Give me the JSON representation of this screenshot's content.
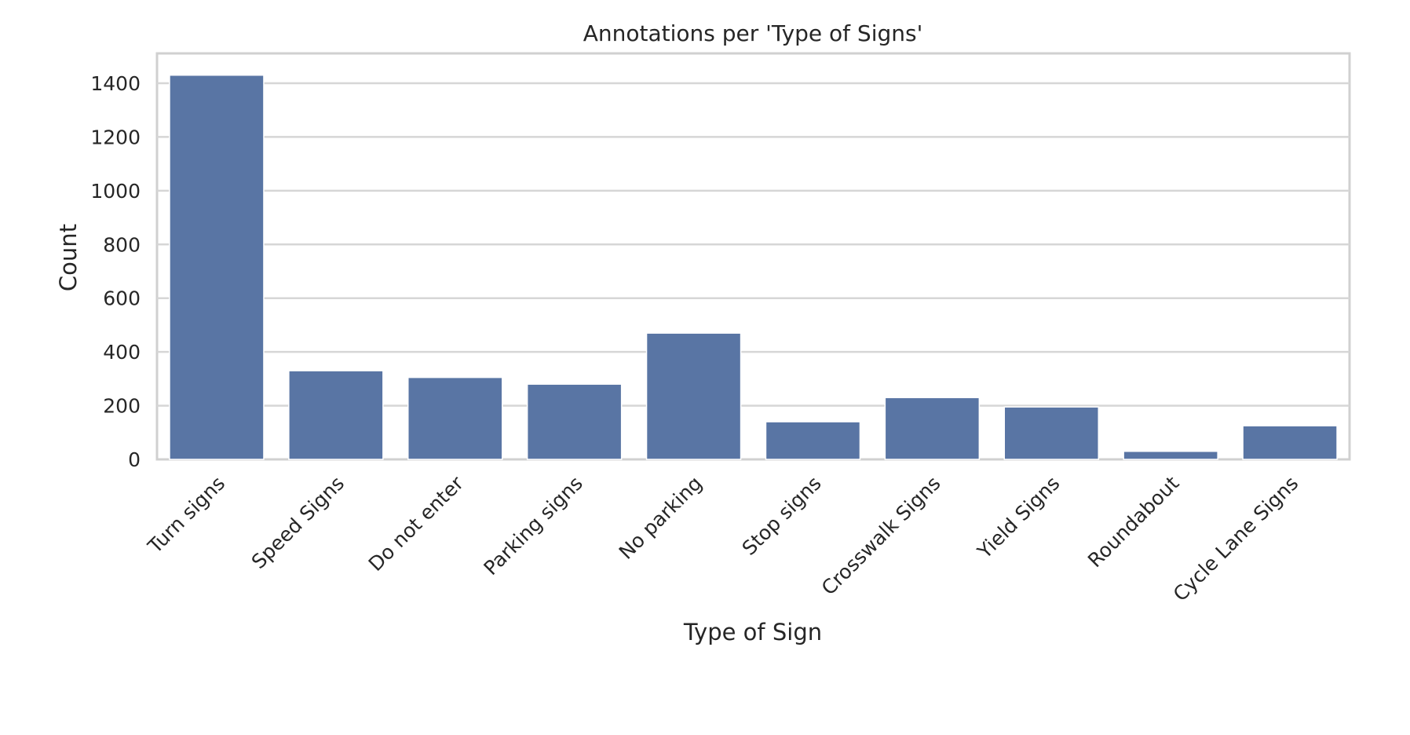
{
  "chart_data": {
    "type": "bar",
    "title": "Annotations per 'Type of Signs'",
    "xlabel": "Type of Sign",
    "ylabel": "Count",
    "categories": [
      "Turn signs",
      "Speed Signs",
      "Do not enter",
      "Parking signs",
      "No parking",
      "Stop signs",
      "Crosswalk Signs",
      "Yield Signs",
      "Roundabout",
      "Cycle Lane Signs"
    ],
    "values": [
      1430,
      330,
      305,
      280,
      470,
      140,
      230,
      195,
      30,
      125
    ],
    "yticks": [
      "0",
      "200",
      "400",
      "600",
      "800",
      "1000",
      "1200",
      "1400"
    ],
    "ylim": [
      0,
      1510
    ],
    "grid": true,
    "bar_color": "#5975a4",
    "legend": "none"
  }
}
